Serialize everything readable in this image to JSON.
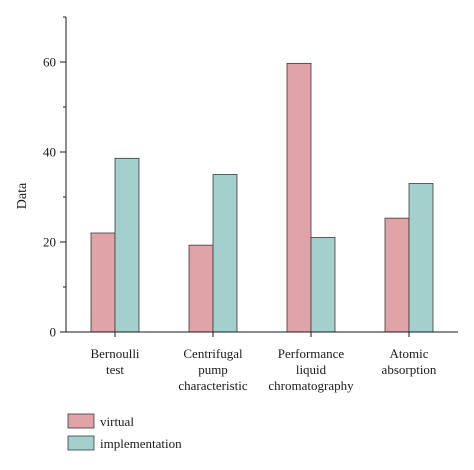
{
  "chart_data": {
    "type": "bar",
    "categories": [
      [
        "Bernoulli",
        "test"
      ],
      [
        "Centrifugal",
        "pump",
        "characteristic"
      ],
      [
        "Performance",
        "liquid",
        "chromatography"
      ],
      [
        "Atomic",
        "absorption"
      ]
    ],
    "series": [
      {
        "name": "virtual",
        "color": "#e0a3a7",
        "values": [
          22,
          19.3,
          59.7,
          25.3
        ]
      },
      {
        "name": "implementation",
        "color": "#a3cfcd",
        "values": [
          38.6,
          35,
          21,
          33
        ]
      }
    ],
    "ylabel": "Data",
    "ylim": [
      0,
      70
    ],
    "yticks": [
      0,
      20,
      40,
      60
    ],
    "legend_position": "bottom-left"
  }
}
